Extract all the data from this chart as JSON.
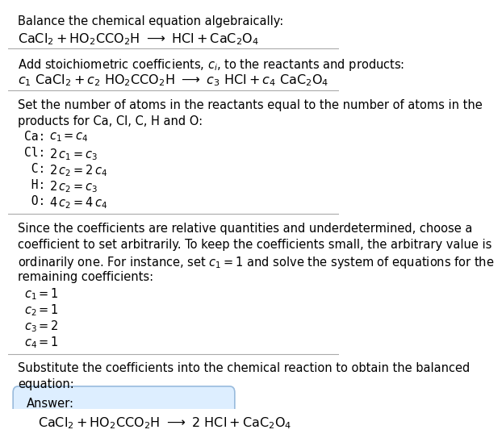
{
  "bg_color": "#ffffff",
  "text_color": "#000000",
  "font_size": 10.5,
  "line_color": "#aaaaaa",
  "answer_box_facecolor": "#ddeeff",
  "answer_box_edgecolor": "#99bbdd",
  "section1_line1": "Balance the chemical equation algebraically:",
  "section1_line2": "$\\mathregular{CaCl_2 + HO_2CCO_2H \\ \\longrightarrow \\ HCl + CaC_2O_4}$",
  "section2_line1": "Add stoichiometric coefficients, $c_i$, to the reactants and products:",
  "section2_line2": "$c_1\\ \\mathregular{CaCl_2} + c_2\\ \\mathregular{HO_2CCO_2H \\ \\longrightarrow}\\ c_3\\ \\mathregular{HCl} + c_4\\ \\mathregular{CaC_2O_4}$",
  "section3_intro": [
    "Set the number of atoms in the reactants equal to the number of atoms in the",
    "products for Ca, Cl, C, H and O:"
  ],
  "section3_eqs": [
    [
      "Ca: ",
      "$c_1 = c_4$"
    ],
    [
      "Cl: ",
      "$2\\,c_1 = c_3$"
    ],
    [
      " C: ",
      "$2\\,c_2 = 2\\,c_4$"
    ],
    [
      " H: ",
      "$2\\,c_2 = c_3$"
    ],
    [
      " O: ",
      "$4\\,c_2 = 4\\,c_4$"
    ]
  ],
  "section4_text": [
    "Since the coefficients are relative quantities and underdetermined, choose a",
    "coefficient to set arbitrarily. To keep the coefficients small, the arbitrary value is",
    "ordinarily one. For instance, set $c_1 = 1$ and solve the system of equations for the",
    "remaining coefficients:"
  ],
  "section4_sols": [
    "$c_1 = 1$",
    "$c_2 = 1$",
    "$c_3 = 2$",
    "$c_4 = 1$"
  ],
  "section5_text": [
    "Substitute the coefficients into the chemical reaction to obtain the balanced",
    "equation:"
  ],
  "answer_label": "Answer:",
  "answer_eq": "$\\mathregular{CaCl_2 + HO_2CCO_2H \\ \\longrightarrow \\ 2\\ HCl + CaC_2O_4}$"
}
